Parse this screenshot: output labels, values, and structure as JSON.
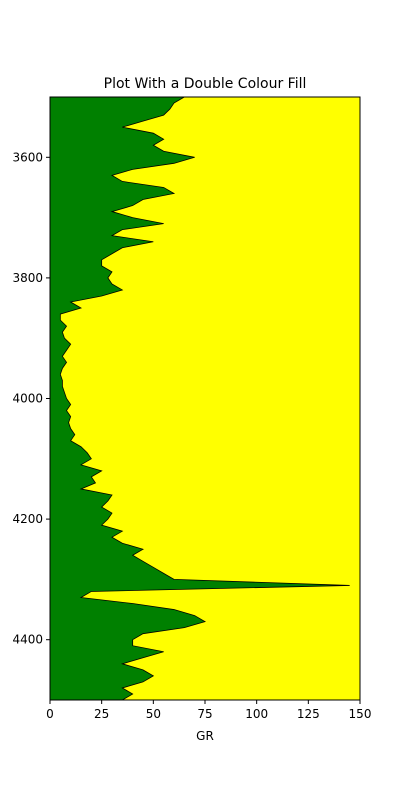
{
  "chart_data": {
    "type": "well-log",
    "title": "Plot With a Double Colour Fill",
    "xlabel": "GR",
    "x": [
      3500,
      3510,
      3520,
      3530,
      3540,
      3550,
      3560,
      3570,
      3580,
      3590,
      3600,
      3610,
      3620,
      3630,
      3640,
      3650,
      3660,
      3670,
      3680,
      3690,
      3700,
      3710,
      3720,
      3730,
      3740,
      3750,
      3760,
      3770,
      3780,
      3790,
      3800,
      3810,
      3820,
      3830,
      3840,
      3850,
      3860,
      3870,
      3880,
      3890,
      3900,
      3910,
      3920,
      3930,
      3940,
      3950,
      3960,
      3970,
      3980,
      3990,
      4000,
      4010,
      4020,
      4030,
      4040,
      4050,
      4060,
      4070,
      4080,
      4090,
      4100,
      4110,
      4120,
      4130,
      4140,
      4150,
      4160,
      4170,
      4180,
      4190,
      4200,
      4210,
      4220,
      4230,
      4240,
      4250,
      4260,
      4270,
      4280,
      4290,
      4300,
      4310,
      4320,
      4330,
      4340,
      4350,
      4360,
      4370,
      4380,
      4390,
      4400,
      4410,
      4420,
      4430,
      4440,
      4450,
      4460,
      4470,
      4480,
      4490,
      4500
    ],
    "series": [
      {
        "name": "GR",
        "color": "#000000",
        "left_fill": "#008000",
        "right_fill": "#ffff00",
        "values": [
          65,
          60,
          58,
          55,
          45,
          35,
          50,
          55,
          50,
          55,
          70,
          60,
          40,
          30,
          35,
          55,
          60,
          45,
          40,
          30,
          40,
          55,
          35,
          30,
          50,
          35,
          30,
          25,
          25,
          30,
          28,
          30,
          35,
          25,
          10,
          15,
          5,
          5,
          8,
          6,
          7,
          10,
          8,
          6,
          8,
          6,
          5,
          6,
          6,
          7,
          8,
          10,
          8,
          10,
          9,
          10,
          12,
          10,
          15,
          18,
          20,
          15,
          25,
          20,
          22,
          15,
          30,
          28,
          25,
          30,
          28,
          25,
          35,
          30,
          35,
          45,
          40,
          45,
          50,
          55,
          60,
          145,
          20,
          15,
          40,
          60,
          70,
          75,
          65,
          45,
          40,
          40,
          55,
          45,
          35,
          45,
          50,
          45,
          35,
          40,
          35
        ]
      }
    ],
    "xlim": [
      0,
      150
    ],
    "xticks": [
      0,
      25,
      50,
      75,
      100,
      125,
      150
    ],
    "ylim": [
      4500,
      3500
    ],
    "yticks": [
      3600,
      3800,
      4000,
      4200,
      4400
    ]
  }
}
